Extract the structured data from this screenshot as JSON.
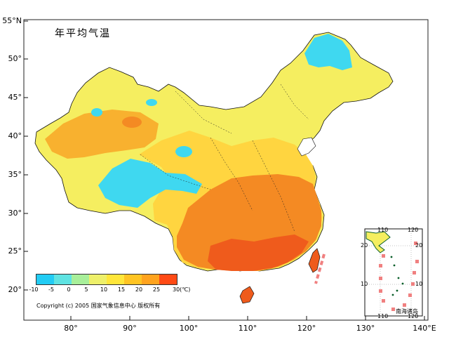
{
  "title": "年平均气温",
  "copyright": "Copyright (c) 2005 国家气象信息中心 版权所有",
  "axes": {
    "lat_labels": [
      "55°N",
      "50°",
      "45°",
      "40°",
      "35°",
      "30°",
      "25°",
      "20°"
    ],
    "lon_labels": [
      "80°",
      "90°",
      "100°",
      "110°",
      "120°",
      "130°",
      "140°E"
    ]
  },
  "legend": {
    "ticks": [
      "-10",
      "-5",
      "0",
      "5",
      "10",
      "15",
      "20",
      "25",
      "30(℃)"
    ],
    "colors": [
      "#22ccf4",
      "#5fe3e2",
      "#a8ef9a",
      "#eef06a",
      "#ffe63a",
      "#ffc423",
      "#ffa31e",
      "#ff7a1e",
      "#ff4a15"
    ]
  },
  "inset": {
    "label": "南海诸岛",
    "top_labels": [
      "110",
      "120"
    ],
    "bottom_labels": [
      "110",
      "120"
    ],
    "left_labels": [
      "20",
      "10"
    ],
    "right_labels": [
      "20",
      "10"
    ]
  },
  "region_colors": {
    "cold": "#3fd8f0",
    "cool": "#f5ee60",
    "mild": "#ffd540",
    "warm": "#f8b12f",
    "hot": "#f48a23",
    "vhot": "#ef5b1c",
    "sea": "#ffffff"
  }
}
